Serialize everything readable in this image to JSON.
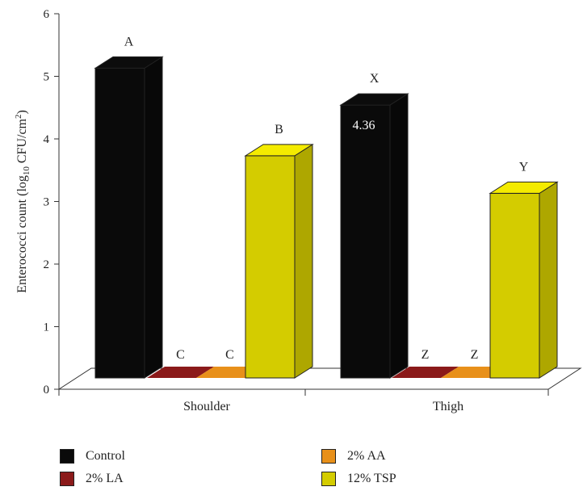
{
  "chart_data": {
    "type": "bar",
    "style": "3d-clustered",
    "categories": [
      "Shoulder",
      "Thigh"
    ],
    "ylabel_main": "Enterococci count (log",
    "ylabel_sub": "10",
    "ylabel_unit": " CFU/cm",
    "ylabel_sup": "2",
    "ylabel_close": ")",
    "ylim": [
      0,
      6
    ],
    "yticks": [
      "0",
      "1",
      "2",
      "3",
      "4",
      "5",
      "6"
    ],
    "series": [
      {
        "name": "Control",
        "color": "#0a0a0a",
        "values": [
          4.95,
          4.36
        ],
        "letters": [
          "A",
          "X"
        ]
      },
      {
        "name": "2% LA",
        "color": "#8b1a1a",
        "values": [
          0,
          0
        ],
        "letters": [
          "C",
          "Z"
        ]
      },
      {
        "name": "2% AA",
        "color": "#e8901a",
        "values": [
          0,
          0
        ],
        "letters": [
          "C",
          "Z"
        ]
      },
      {
        "name": "12% TSP",
        "color": "#d4cc00",
        "values": [
          3.55,
          2.95
        ],
        "letters": [
          "B",
          "Y"
        ]
      }
    ],
    "value_labels": [
      {
        "series": 0,
        "category": 1,
        "text": "4.36"
      }
    ],
    "legend_position": "bottom"
  }
}
